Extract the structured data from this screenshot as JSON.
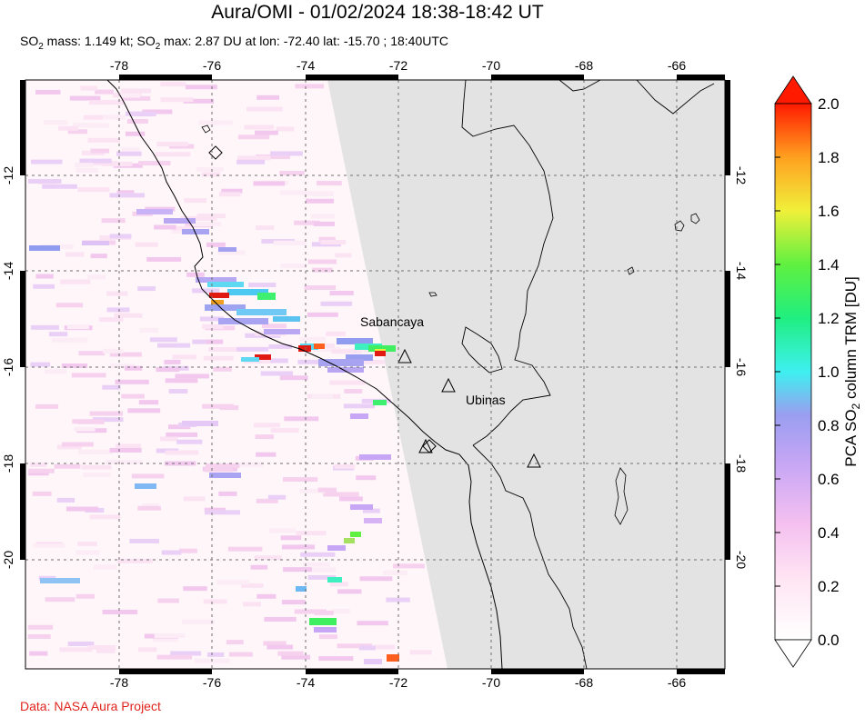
{
  "title": "Aura/OMI - 01/02/2024 18:38-18:42 UT",
  "subtitle": {
    "mass_prefix": "SO",
    "mass_sub": "2",
    "mass_text": " mass: 1.149 kt; SO",
    "max_sub": "2",
    "max_text": " max: 2.87 DU at lon: -72.40 lat: -15.70 ; 18:40UTC"
  },
  "credit": "Data: NASA Aura Project",
  "map": {
    "lon_ticks": [
      "-78",
      "-76",
      "-74",
      "-72",
      "-70",
      "-68",
      "-66"
    ],
    "lat_ticks": [
      "-12",
      "-14",
      "-16",
      "-18",
      "-20"
    ],
    "volcanoes": [
      {
        "name": "Sabancaya",
        "label": "Sabancaya"
      },
      {
        "name": "Ubinas",
        "label": "Ubinas"
      }
    ],
    "swath_gap_color": "#e3e3e3"
  },
  "colorbar": {
    "label_prefix": "PCA SO",
    "label_sub": "2",
    "label_suffix": " column TRM [DU]",
    "ticks": [
      "2.0",
      "1.8",
      "1.6",
      "1.4",
      "1.2",
      "1.0",
      "0.8",
      "0.6",
      "0.4",
      "0.2",
      "0.0"
    ],
    "colors": [
      "#ffffff",
      "#ffd6f0",
      "#d8a8f5",
      "#8f9cf0",
      "#3ef0f0",
      "#3fef60",
      "#f0f03a",
      "#ffa020",
      "#ff1a00"
    ]
  }
}
